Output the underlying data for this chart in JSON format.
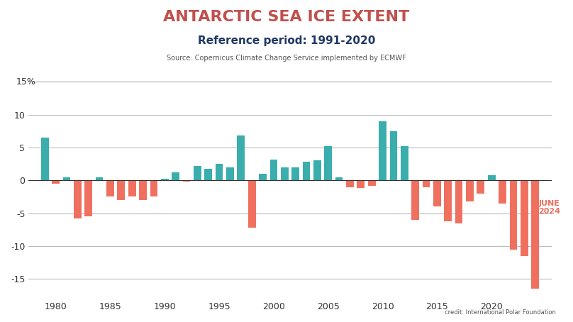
{
  "title": "ANTARCTIC SEA ICE EXTENT",
  "subtitle": "Reference period: 1991-2020",
  "source": "Source: Copernicus Climate Change Service implemented by ECMWF",
  "credit": "credit: International Polar Foundation",
  "annotation": "JUNE\n2024",
  "years": [
    1979,
    1980,
    1981,
    1982,
    1983,
    1984,
    1985,
    1986,
    1987,
    1988,
    1989,
    1990,
    1991,
    1992,
    1993,
    1994,
    1995,
    1996,
    1997,
    1998,
    1999,
    2000,
    2001,
    2002,
    2003,
    2004,
    2005,
    2006,
    2007,
    2008,
    2009,
    2010,
    2011,
    2012,
    2013,
    2014,
    2015,
    2016,
    2017,
    2018,
    2019,
    2020,
    2021,
    2022,
    2023,
    2024
  ],
  "values": [
    6.5,
    -0.5,
    0.5,
    -5.8,
    -5.5,
    0.5,
    -2.5,
    -3.0,
    -2.5,
    -3.0,
    -2.5,
    0.3,
    1.2,
    -0.2,
    2.2,
    1.8,
    2.5,
    2.0,
    6.8,
    -7.2,
    1.0,
    3.2,
    2.0,
    2.0,
    2.8,
    3.0,
    5.2,
    0.5,
    -1.0,
    -1.2,
    -0.8,
    9.0,
    7.5,
    5.2,
    -6.0,
    -1.0,
    -4.0,
    -6.2,
    -6.5,
    -3.2,
    -2.0,
    0.8,
    -3.5,
    -10.5,
    -11.5,
    -16.5
  ],
  "positive_color": "#3aadad",
  "negative_color": "#f07060",
  "annotation_color": "#f07060",
  "title_color": "#c0504d",
  "subtitle_color": "#1f3864",
  "source_color": "#555555",
  "axis_label_color": "#333333",
  "grid_color": "#aaaaaa",
  "ylim": [
    -18,
    17
  ],
  "yticks": [
    -15,
    -10,
    -5,
    0,
    5,
    10
  ],
  "extra_ytick": 15,
  "bar_width": 0.7,
  "background_color": "#d0dce8"
}
